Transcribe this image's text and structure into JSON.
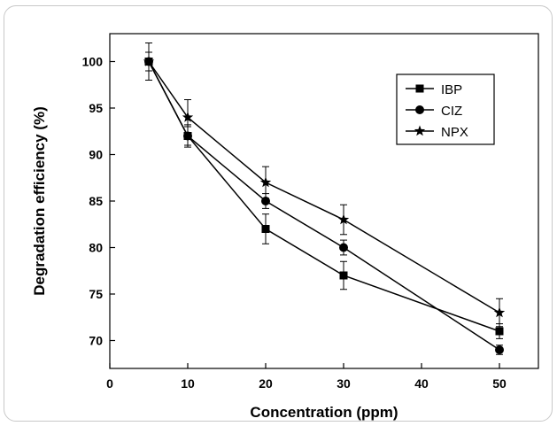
{
  "chart_data": {
    "type": "line",
    "title": "",
    "xlabel": "Concentration (ppm)",
    "ylabel": "Degradation efficiency (%)",
    "xlim": [
      0,
      55
    ],
    "ylim": [
      67,
      103
    ],
    "x_ticks": [
      0,
      10,
      20,
      30,
      40,
      50
    ],
    "y_ticks": [
      70,
      75,
      80,
      85,
      90,
      95,
      100
    ],
    "grid": false,
    "legend_position": "top-right",
    "series": [
      {
        "name": "IBP",
        "marker": "square",
        "color": "#000000",
        "x": [
          5,
          10,
          20,
          30,
          50
        ],
        "y": [
          100,
          92,
          82,
          77,
          71
        ],
        "error": [
          1.0,
          1.0,
          1.6,
          1.5,
          0.8
        ]
      },
      {
        "name": "CIZ",
        "marker": "circle",
        "color": "#000000",
        "x": [
          5,
          10,
          20,
          30,
          50
        ],
        "y": [
          100,
          92,
          85,
          80,
          69
        ],
        "error": [
          1.0,
          1.2,
          0.8,
          0.8,
          0.5
        ]
      },
      {
        "name": "NPX",
        "marker": "star",
        "color": "#000000",
        "x": [
          5,
          10,
          20,
          30,
          50
        ],
        "y": [
          100,
          94,
          87,
          83,
          73
        ],
        "error": [
          2.0,
          1.9,
          1.7,
          1.6,
          1.5
        ]
      }
    ]
  }
}
